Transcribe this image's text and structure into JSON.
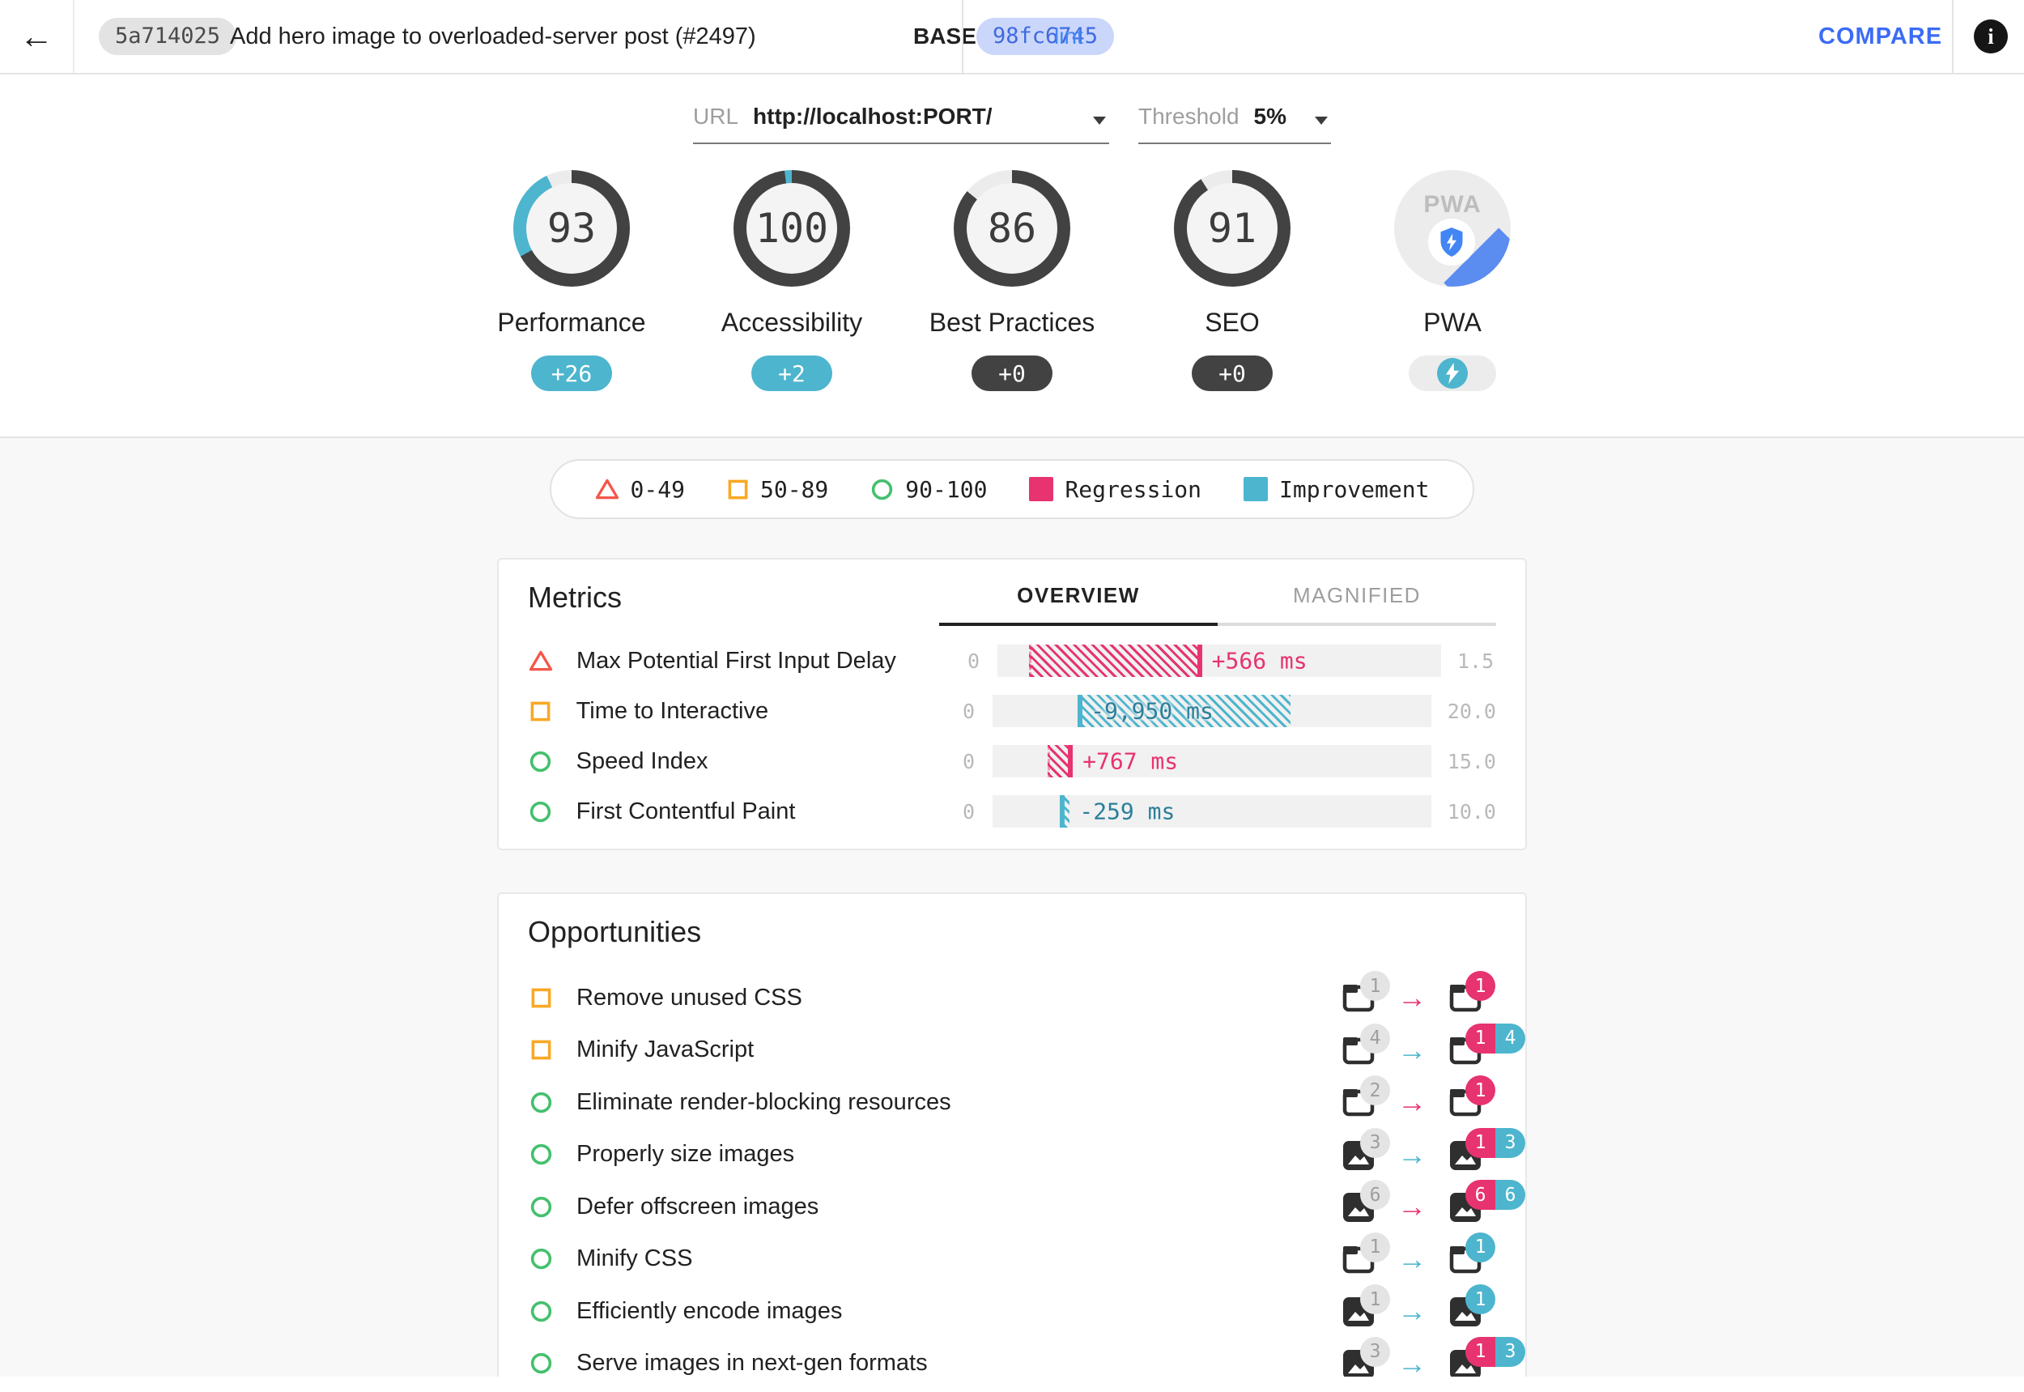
{
  "colors": {
    "regression": "#e7336f",
    "improvement": "#4db5ce",
    "improvement_text": "#2b7f9a",
    "neutral_badge": "#424242",
    "fail": "#f4564a",
    "average": "#f9a825",
    "pass": "#45c06e",
    "link_blue": "#4285f4",
    "compare_blue": "#3b6cf6",
    "ring_dark": "#424242",
    "ring_rest": "#ececec",
    "pwa_blue": "#4285f4"
  },
  "icons": {
    "back": "←",
    "info": "i",
    "arrow_right": "→"
  },
  "topbar": {
    "base_hash": "5a714025",
    "title": "Add hero image to overloaded-server post (#2497)",
    "base_label": "BASE",
    "compare_hash": "98fc6745",
    "compare_branch": "lint",
    "compare_button": "COMPARE"
  },
  "controls": {
    "url_label": "URL",
    "url_value": "http://localhost:PORT/",
    "threshold_label": "Threshold",
    "threshold_value": "5%"
  },
  "gauges": [
    {
      "name": "Performance",
      "score": 93,
      "delta": "+26",
      "delta_type": "improvement"
    },
    {
      "name": "Accessibility",
      "score": 100,
      "delta": "+2",
      "delta_type": "improvement"
    },
    {
      "name": "Best Practices",
      "score": 86,
      "delta": "+0",
      "delta_type": "neutral"
    },
    {
      "name": "SEO",
      "score": 91,
      "delta": "+0",
      "delta_type": "neutral"
    },
    {
      "name": "PWA",
      "score": null,
      "delta": null,
      "delta_type": "pwa"
    }
  ],
  "legend": {
    "items": [
      {
        "icon": "triangle",
        "label": "0-49"
      },
      {
        "icon": "square",
        "label": "50-89"
      },
      {
        "icon": "circle",
        "label": "90-100"
      },
      {
        "icon": "swatch-regression",
        "label": "Regression"
      },
      {
        "icon": "swatch-improvement",
        "label": "Improvement"
      }
    ]
  },
  "metrics": {
    "title": "Metrics",
    "tabs": [
      {
        "label": "OVERVIEW",
        "active": true
      },
      {
        "label": "MAGNIFIED",
        "active": false
      }
    ],
    "rows": [
      {
        "severity": "fail",
        "label": "Max Potential First Input Delay",
        "min": "0",
        "max": "1.5",
        "delta_label": "+566 ms",
        "direction": "regression",
        "bar_start_pct": 7.1,
        "bar_end_pct": 46.1,
        "label_inside": false
      },
      {
        "severity": "average",
        "label": "Time to Interactive",
        "min": "0",
        "max": "20.0",
        "delta_label": "-9,950 ms",
        "direction": "improvement",
        "bar_start_pct": 19.4,
        "bar_end_pct": 68.0,
        "label_inside": true
      },
      {
        "severity": "pass",
        "label": "Speed Index",
        "min": "0",
        "max": "15.0",
        "delta_label": "+767 ms",
        "direction": "regression",
        "bar_start_pct": 12.5,
        "bar_end_pct": 18.3,
        "label_inside": false
      },
      {
        "severity": "pass",
        "label": "First Contentful Paint",
        "min": "0",
        "max": "10.0",
        "delta_label": "-259 ms",
        "direction": "improvement",
        "bar_start_pct": 15.3,
        "bar_end_pct": 17.6,
        "label_inside": false
      }
    ]
  },
  "opportunities": {
    "title": "Opportunities",
    "rows": [
      {
        "severity": "average",
        "label": "Remove unused CSS",
        "icon": "document",
        "base_count": "1",
        "arrow": "regression",
        "badges": [
          {
            "value": "1",
            "type": "regression"
          }
        ]
      },
      {
        "severity": "average",
        "label": "Minify JavaScript",
        "icon": "document",
        "base_count": "4",
        "arrow": "improvement",
        "badges": [
          {
            "value": "1",
            "type": "regression"
          },
          {
            "value": "4",
            "type": "improvement"
          }
        ]
      },
      {
        "severity": "pass",
        "label": "Eliminate render-blocking resources",
        "icon": "document",
        "base_count": "2",
        "arrow": "regression",
        "badges": [
          {
            "value": "1",
            "type": "regression"
          }
        ]
      },
      {
        "severity": "pass",
        "label": "Properly size images",
        "icon": "image",
        "base_count": "3",
        "arrow": "improvement",
        "badges": [
          {
            "value": "1",
            "type": "regression"
          },
          {
            "value": "3",
            "type": "improvement"
          }
        ]
      },
      {
        "severity": "pass",
        "label": "Defer offscreen images",
        "icon": "image",
        "base_count": "6",
        "arrow": "regression",
        "badges": [
          {
            "value": "6",
            "type": "regression"
          },
          {
            "value": "6",
            "type": "improvement"
          }
        ]
      },
      {
        "severity": "pass",
        "label": "Minify CSS",
        "icon": "document",
        "base_count": "1",
        "arrow": "improvement",
        "badges": [
          {
            "value": "1",
            "type": "improvement"
          }
        ]
      },
      {
        "severity": "pass",
        "label": "Efficiently encode images",
        "icon": "image",
        "base_count": "1",
        "arrow": "improvement",
        "badges": [
          {
            "value": "1",
            "type": "improvement"
          }
        ]
      },
      {
        "severity": "pass",
        "label": "Serve images in next-gen formats",
        "icon": "image",
        "base_count": "3",
        "arrow": "improvement",
        "badges": [
          {
            "value": "1",
            "type": "regression"
          },
          {
            "value": "3",
            "type": "improvement"
          }
        ]
      }
    ]
  }
}
